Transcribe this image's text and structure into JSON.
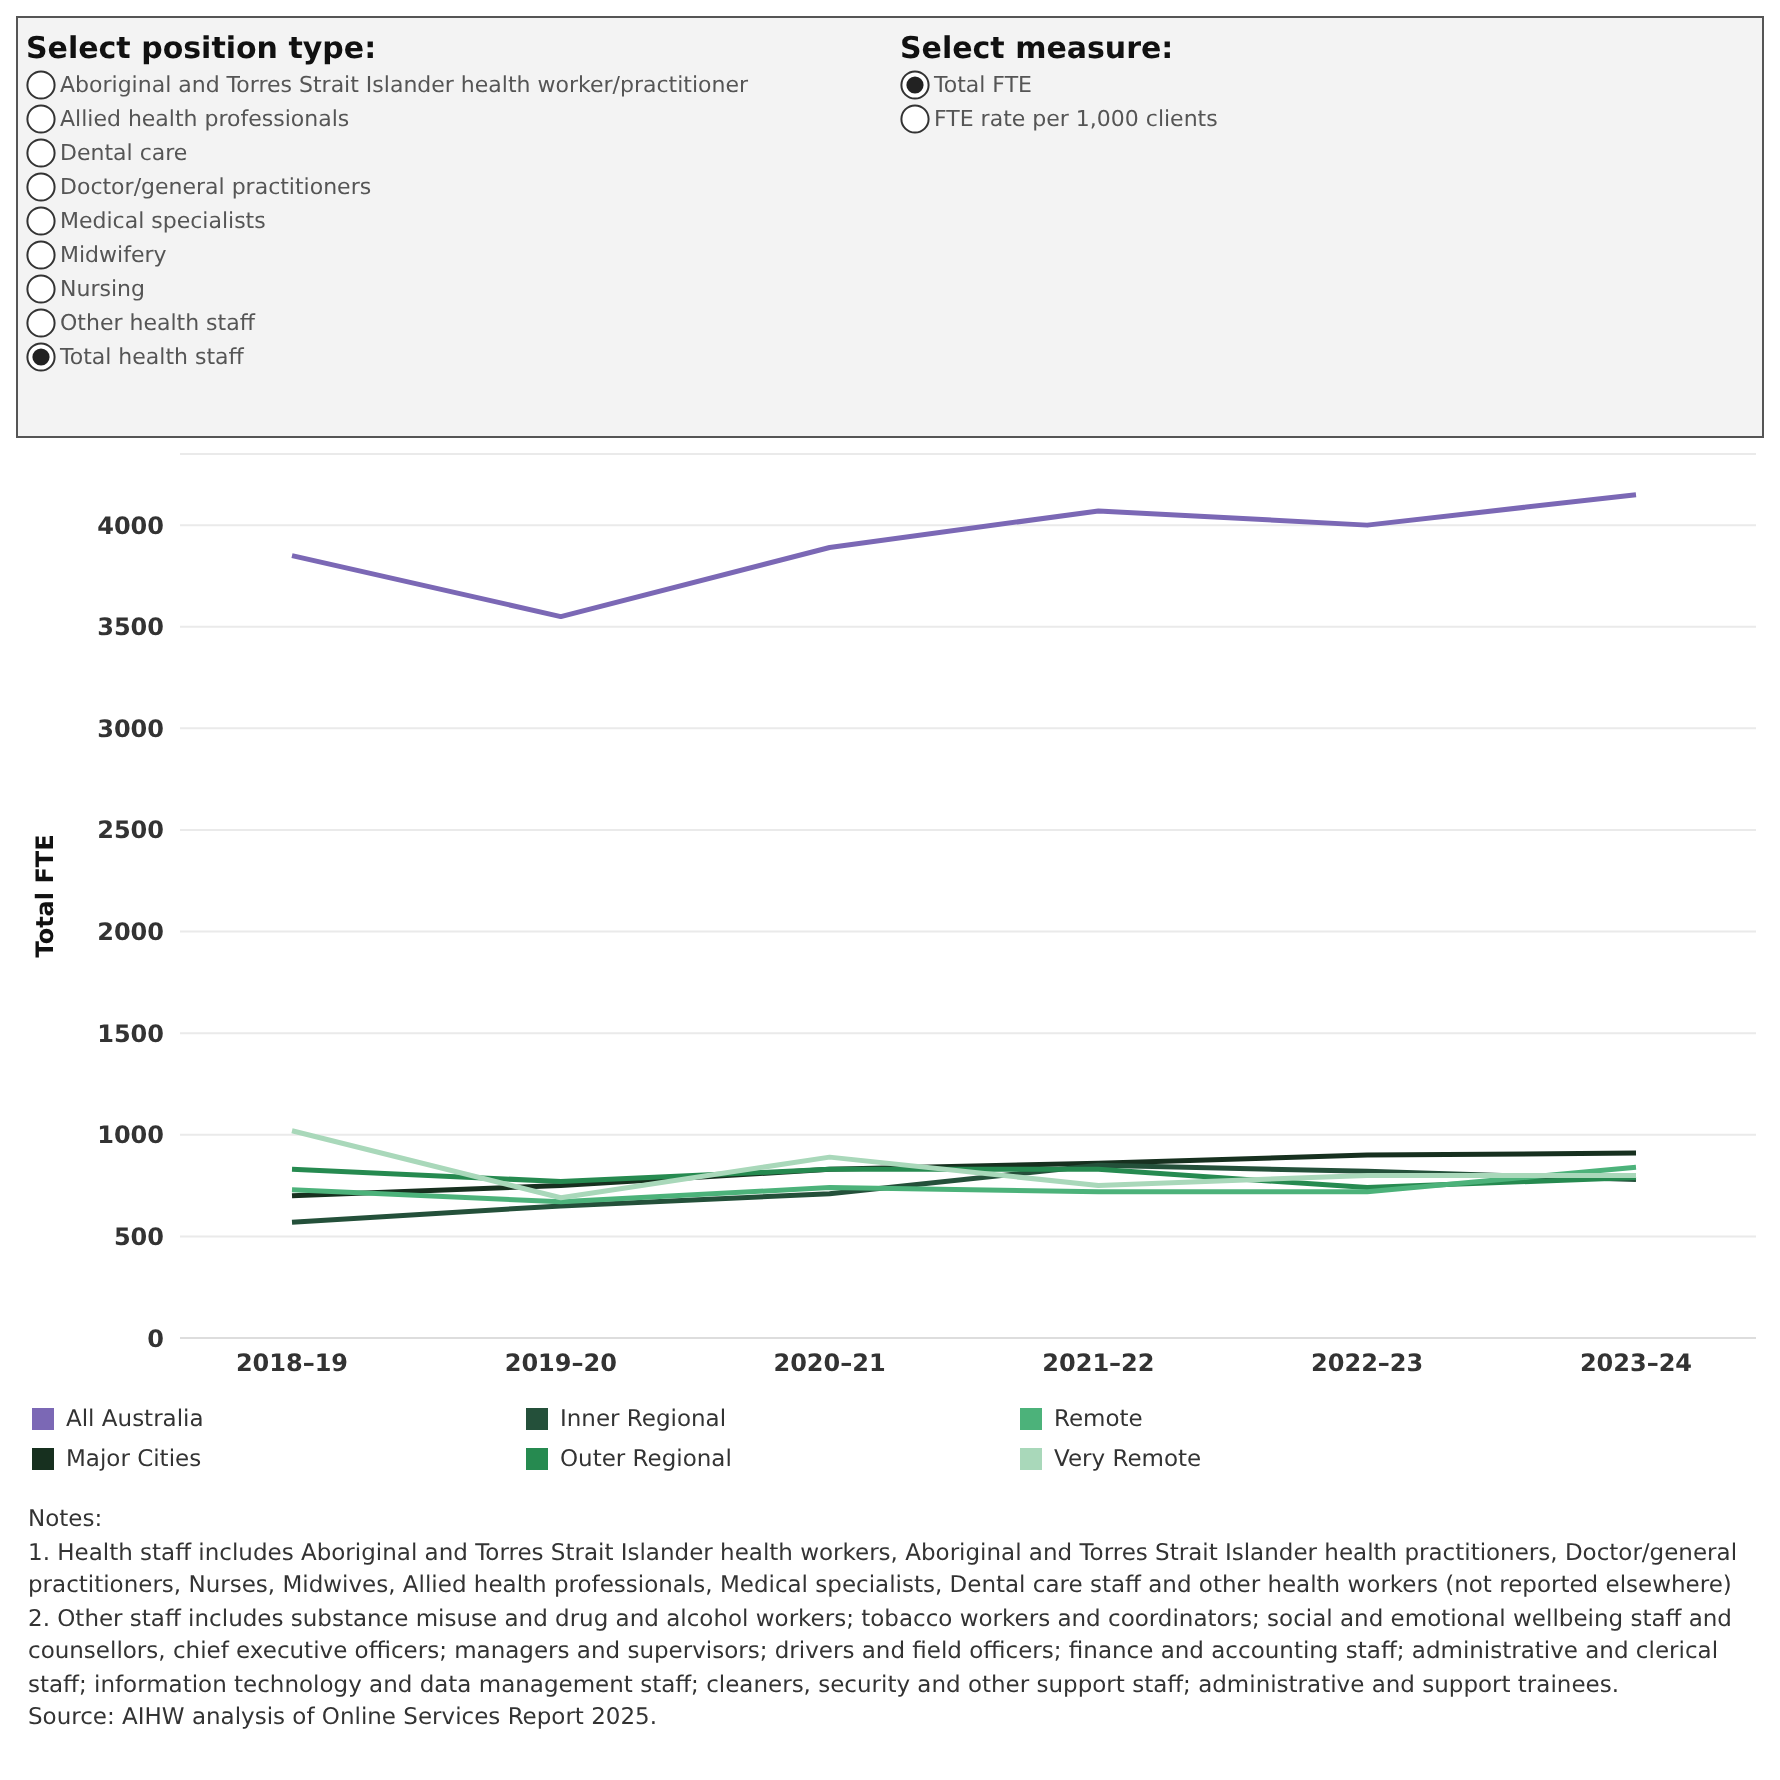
{
  "chart_data": {
    "type": "line",
    "ylabel": "Total FTE",
    "categories": [
      "2018–19",
      "2019–20",
      "2020–21",
      "2021–22",
      "2022–23",
      "2023–24"
    ],
    "series": [
      {
        "name": "All Australia",
        "color": "#7b68b5",
        "values": [
          3850,
          3550,
          3890,
          4070,
          4000,
          4150
        ]
      },
      {
        "name": "Major Cities",
        "color": "#17301f",
        "values": [
          700,
          750,
          830,
          860,
          900,
          910
        ]
      },
      {
        "name": "Inner Regional",
        "color": "#24503a",
        "values": [
          570,
          650,
          710,
          850,
          820,
          780
        ]
      },
      {
        "name": "Outer Regional",
        "color": "#268a50",
        "values": [
          830,
          770,
          830,
          830,
          740,
          790
        ]
      },
      {
        "name": "Remote",
        "color": "#4cb27a",
        "values": [
          730,
          670,
          740,
          720,
          720,
          840
        ]
      },
      {
        "name": "Very Remote",
        "color": "#a9d8ba",
        "values": [
          1020,
          690,
          890,
          750,
          800,
          800
        ]
      }
    ],
    "ylim": [
      0,
      4350
    ],
    "yticks": [
      0,
      500,
      1000,
      1500,
      2000,
      2500,
      3000,
      3500,
      4000
    ],
    "grid": "y",
    "legend": "bottom",
    "marker": "none",
    "line_style": "solid",
    "annotations": [
      "Select position type:",
      "Aboriginal and Torres Strait Islander health worker/practitioner",
      "Allied health professionals",
      "Dental care",
      "Doctor/general practitioners",
      "Medical specialists",
      "Midwifery",
      "Nursing",
      "Other health staff",
      "Total health staff",
      "Select measure:",
      "Total FTE",
      "FTE rate per 1,000 clients",
      "Notes:",
      "1. Health staff includes Aboriginal and Torres Strait Islander health workers, Aboriginal and Torres Strait Islander health practitioners, Doctor/general practitioners, Nurses, Midwives, Allied health professionals, Medical specialists, Dental care staff and other health workers (not reported elsewhere)",
      "2. Other staff includes substance misuse and drug and alcohol workers; tobacco workers and coordinators; social and emotional wellbeing staff and counsellors, chief executive officers; managers and supervisors; drivers and field officers; finance and accounting staff; administrative and clerical staff; information technology and data management staff; cleaners, security and other support staff; administrative and support trainees.",
      "Source: AIHW analysis of Online Services Report 2025."
    ]
  }
}
